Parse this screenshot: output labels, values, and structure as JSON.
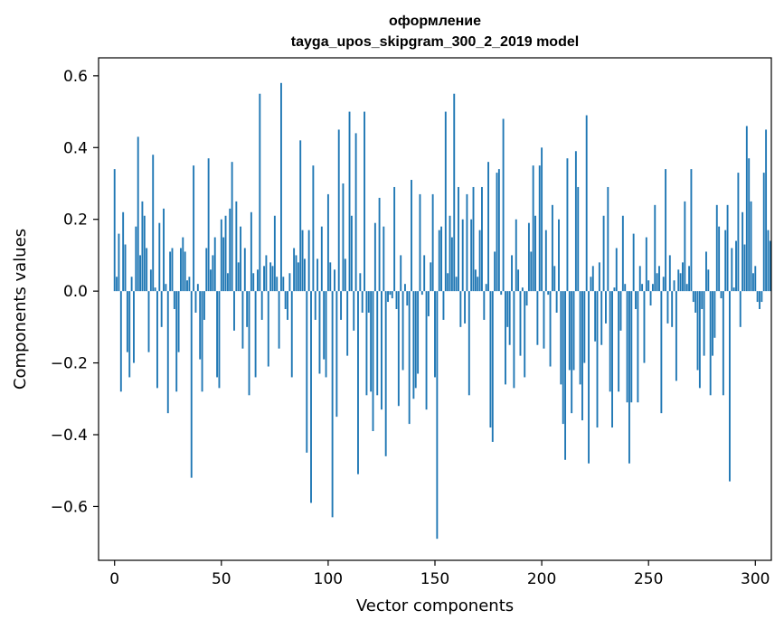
{
  "chart_data": {
    "type": "bar",
    "title_line1": "оформление",
    "title_line2": "tayga_upos_skipgram_300_2_2019 model",
    "xlabel": "Vector components",
    "ylabel": "Components values",
    "xlim": [
      -7.5,
      307.5
    ],
    "ylim": [
      -0.75,
      0.65
    ],
    "xticks": [
      0,
      50,
      100,
      150,
      200,
      250,
      300
    ],
    "xtick_labels": [
      "0",
      "50",
      "100",
      "150",
      "200",
      "250",
      "300"
    ],
    "yticks": [
      -0.6,
      -0.4,
      -0.2,
      0.0,
      0.2,
      0.4,
      0.6
    ],
    "ytick_labels": [
      "−0.6",
      "−0.4",
      "−0.2",
      "0.0",
      "0.2",
      "0.4",
      "0.6"
    ],
    "bar_color": "#1f77b4",
    "grid": false,
    "values": [
      0.34,
      0.04,
      0.16,
      -0.28,
      0.22,
      0.13,
      -0.17,
      -0.24,
      0.04,
      -0.2,
      0.18,
      0.43,
      0.1,
      0.25,
      0.21,
      0.12,
      -0.17,
      0.06,
      0.38,
      0.01,
      -0.27,
      0.19,
      -0.1,
      0.23,
      0.02,
      -0.34,
      0.11,
      0.12,
      -0.05,
      -0.28,
      -0.17,
      0.12,
      0.15,
      0.11,
      0.03,
      0.04,
      -0.52,
      0.35,
      -0.06,
      0.02,
      -0.19,
      -0.28,
      -0.08,
      0.12,
      0.37,
      0.06,
      0.1,
      0.15,
      -0.24,
      -0.27,
      0.2,
      0.15,
      0.21,
      0.05,
      0.23,
      0.36,
      -0.11,
      0.25,
      0.08,
      0.18,
      -0.16,
      0.12,
      -0.1,
      -0.29,
      0.22,
      0.05,
      -0.24,
      0.06,
      0.55,
      -0.08,
      0.07,
      0.1,
      -0.21,
      0.08,
      0.07,
      0.21,
      0.04,
      -0.16,
      0.58,
      0.04,
      -0.05,
      -0.08,
      0.05,
      -0.24,
      0.12,
      0.1,
      0.08,
      0.42,
      0.17,
      0.09,
      -0.45,
      0.17,
      -0.59,
      0.35,
      -0.08,
      0.09,
      -0.23,
      0.18,
      -0.19,
      -0.24,
      0.27,
      0.08,
      -0.63,
      0.06,
      -0.35,
      0.45,
      -0.08,
      0.3,
      0.09,
      -0.18,
      0.5,
      0.21,
      -0.11,
      0.44,
      -0.51,
      0.05,
      -0.06,
      0.5,
      -0.29,
      -0.06,
      -0.28,
      -0.39,
      0.19,
      -0.29,
      0.26,
      -0.33,
      0.18,
      -0.46,
      -0.03,
      -0.01,
      -0.02,
      0.29,
      -0.05,
      -0.32,
      0.1,
      -0.22,
      0.02,
      -0.04,
      -0.37,
      0.31,
      -0.3,
      -0.27,
      -0.23,
      0.27,
      -0.01,
      0.1,
      -0.33,
      -0.07,
      0.08,
      0.27,
      -0.24,
      -0.69,
      0.17,
      0.18,
      -0.08,
      0.5,
      0.05,
      0.21,
      0.15,
      0.55,
      0.04,
      0.29,
      -0.1,
      0.2,
      -0.09,
      0.27,
      -0.29,
      0.2,
      0.29,
      0.06,
      0.04,
      0.17,
      0.29,
      -0.08,
      0.02,
      0.36,
      -0.38,
      -0.42,
      0.11,
      0.33,
      0.34,
      -0.01,
      0.48,
      -0.26,
      -0.1,
      -0.15,
      0.1,
      -0.27,
      0.2,
      0.06,
      -0.18,
      0.01,
      -0.24,
      -0.04,
      0.19,
      0.11,
      0.35,
      0.21,
      -0.15,
      0.35,
      0.4,
      -0.16,
      0.17,
      -0.01,
      -0.21,
      0.24,
      0.07,
      -0.06,
      0.2,
      -0.26,
      -0.37,
      -0.47,
      0.37,
      -0.22,
      -0.34,
      -0.22,
      0.39,
      0.29,
      -0.26,
      -0.36,
      -0.2,
      0.49,
      -0.48,
      0.04,
      0.07,
      -0.14,
      -0.38,
      0.08,
      -0.15,
      0.21,
      -0.09,
      0.29,
      -0.28,
      -0.38,
      0.01,
      0.12,
      -0.28,
      -0.11,
      0.21,
      0.02,
      -0.31,
      -0.48,
      -0.31,
      0.16,
      -0.05,
      -0.31,
      0.07,
      0.02,
      -0.2,
      0.15,
      0.03,
      -0.04,
      0.02,
      0.24,
      0.05,
      0.07,
      -0.34,
      0.04,
      0.34,
      -0.09,
      0.1,
      -0.1,
      0.03,
      -0.25,
      0.06,
      0.05,
      0.08,
      0.25,
      0.02,
      0.07,
      0.34,
      -0.03,
      -0.06,
      -0.22,
      -0.27,
      -0.05,
      -0.18,
      0.11,
      0.06,
      -0.29,
      -0.18,
      -0.13,
      0.24,
      0.18,
      -0.02,
      -0.29,
      0.17,
      0.24,
      -0.53,
      0.12,
      0.01,
      0.14,
      0.33,
      -0.1,
      0.22,
      0.13,
      0.46,
      0.37,
      0.25,
      0.05,
      0.07,
      -0.03,
      -0.05,
      -0.03,
      0.33,
      0.45,
      0.17,
      0.14
    ]
  }
}
